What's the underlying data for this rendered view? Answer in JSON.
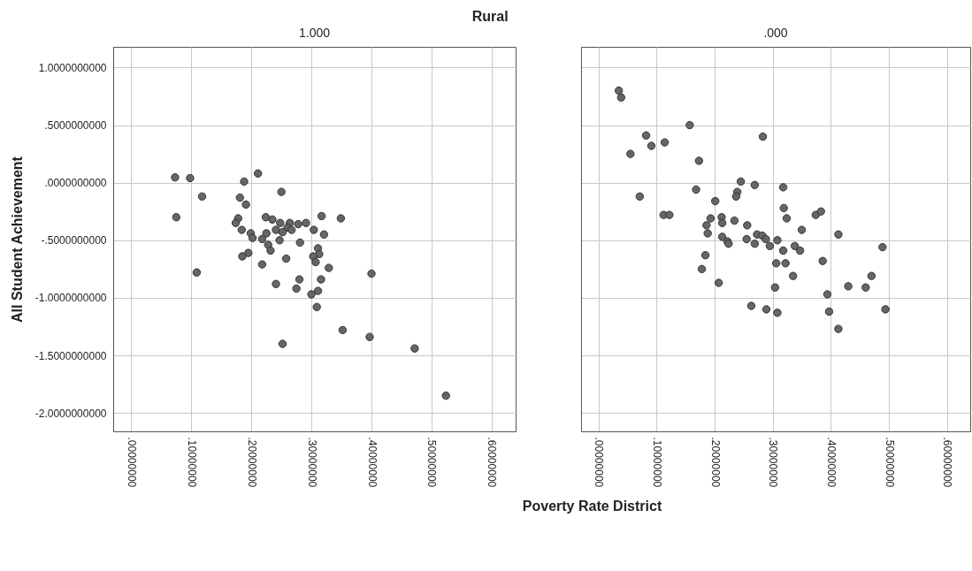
{
  "chart_data": [
    {
      "type": "scatter",
      "title": "1.000",
      "annotations": [
        "Rural"
      ],
      "ylabel": "All Student Achievement",
      "x": [
        0.073,
        0.098,
        0.118,
        0.075,
        0.109,
        0.188,
        0.211,
        0.25,
        0.181,
        0.191,
        0.178,
        0.174,
        0.184,
        0.199,
        0.202,
        0.224,
        0.235,
        0.248,
        0.264,
        0.26,
        0.241,
        0.252,
        0.267,
        0.278,
        0.291,
        0.304,
        0.225,
        0.218,
        0.247,
        0.228,
        0.232,
        0.281,
        0.195,
        0.185,
        0.218,
        0.258,
        0.241,
        0.28,
        0.275,
        0.252,
        0.317,
        0.349,
        0.321,
        0.311,
        0.313,
        0.303,
        0.307,
        0.329,
        0.316,
        0.3,
        0.311,
        0.309,
        0.4,
        0.352,
        0.397,
        0.472,
        0.524
      ],
      "series": [
        {
          "color": "#666666",
          "values": [
            0.046,
            0.04,
            -0.12,
            -0.3,
            -0.78,
            0.01,
            0.08,
            -0.08,
            -0.13,
            -0.19,
            -0.31,
            -0.35,
            -0.41,
            -0.44,
            -0.48,
            -0.3,
            -0.32,
            -0.35,
            -0.35,
            -0.39,
            -0.41,
            -0.43,
            -0.41,
            -0.36,
            -0.35,
            -0.41,
            -0.44,
            -0.49,
            -0.5,
            -0.54,
            -0.59,
            -0.52,
            -0.61,
            -0.64,
            -0.71,
            -0.66,
            -0.88,
            -0.84,
            -0.92,
            -1.4,
            -0.29,
            -0.31,
            -0.45,
            -0.57,
            -0.62,
            -0.64,
            -0.69,
            -0.74,
            -0.84,
            -0.97,
            -0.94,
            -1.08,
            -0.79,
            -1.28,
            -1.34,
            -1.44,
            -1.85
          ]
        }
      ],
      "marker": "circle",
      "grid": true,
      "xlim": [
        -0.03,
        0.64
      ],
      "xticks": [
        {
          "value": 0,
          "label": ".00000000"
        },
        {
          "value": 0.1,
          "label": ".10000000"
        },
        {
          "value": 0.2,
          "label": ".20000000"
        },
        {
          "value": 0.3,
          "label": ".30000000"
        },
        {
          "value": 0.4,
          "label": ".40000000"
        },
        {
          "value": 0.5,
          "label": ".50000000"
        },
        {
          "value": 0.6,
          "label": ".60000000"
        }
      ],
      "ylim": [
        -2.16,
        1.18
      ],
      "yticks": [
        {
          "value": 1,
          "label": "1.0000000000"
        },
        {
          "value": 0.5,
          "label": ".5000000000"
        },
        {
          "value": 0,
          "label": ".0000000000"
        },
        {
          "value": -0.5,
          "label": "-.5000000000"
        },
        {
          "value": -1,
          "label": "-1.0000000000"
        },
        {
          "value": -1.5,
          "label": "-1.5000000000"
        },
        {
          "value": -2,
          "label": "-2.0000000000"
        }
      ]
    },
    {
      "type": "scatter",
      "title": ".000",
      "xlabel": "Poverty Rate District",
      "x": [
        0.035,
        0.039,
        0.082,
        0.091,
        0.055,
        0.114,
        0.157,
        0.173,
        0.283,
        0.071,
        0.168,
        0.112,
        0.122,
        0.201,
        0.245,
        0.239,
        0.237,
        0.269,
        0.193,
        0.186,
        0.188,
        0.212,
        0.213,
        0.234,
        0.256,
        0.213,
        0.222,
        0.224,
        0.255,
        0.269,
        0.273,
        0.282,
        0.288,
        0.295,
        0.184,
        0.178,
        0.318,
        0.319,
        0.324,
        0.374,
        0.383,
        0.35,
        0.413,
        0.489,
        0.308,
        0.318,
        0.338,
        0.347,
        0.306,
        0.322,
        0.335,
        0.386,
        0.207,
        0.304,
        0.394,
        0.43,
        0.46,
        0.47,
        0.263,
        0.289,
        0.308,
        0.397,
        0.494,
        0.413
      ],
      "series": [
        {
          "color": "#666666",
          "values": [
            0.8,
            0.74,
            0.41,
            0.32,
            0.25,
            0.35,
            0.5,
            0.19,
            0.4,
            -0.12,
            -0.06,
            -0.28,
            -0.28,
            -0.16,
            0.01,
            -0.08,
            -0.12,
            -0.02,
            -0.31,
            -0.37,
            -0.44,
            -0.3,
            -0.35,
            -0.33,
            -0.37,
            -0.47,
            -0.51,
            -0.53,
            -0.49,
            -0.53,
            -0.45,
            -0.46,
            -0.49,
            -0.55,
            -0.63,
            -0.75,
            -0.04,
            -0.22,
            -0.31,
            -0.28,
            -0.25,
            -0.41,
            -0.45,
            -0.56,
            -0.5,
            -0.59,
            -0.55,
            -0.59,
            -0.7,
            -0.7,
            -0.81,
            -0.68,
            -0.87,
            -0.91,
            -0.97,
            -0.9,
            -0.91,
            -0.81,
            -1.07,
            -1.1,
            -1.13,
            -1.12,
            -1.1,
            -1.27
          ]
        }
      ],
      "marker": "circle",
      "grid": true,
      "tick_labels": "x",
      "xlim": [
        -0.03,
        0.64
      ],
      "xticks": [
        {
          "value": 0,
          "label": ".00000000"
        },
        {
          "value": 0.1,
          "label": ".10000000"
        },
        {
          "value": 0.2,
          "label": ".20000000"
        },
        {
          "value": 0.3,
          "label": ".30000000"
        },
        {
          "value": 0.4,
          "label": ".40000000"
        },
        {
          "value": 0.5,
          "label": ".50000000"
        },
        {
          "value": 0.6,
          "label": ".60000000"
        }
      ],
      "ylim": [
        -2.16,
        1.18
      ],
      "yticks": [
        {
          "value": 1,
          "label": null
        },
        {
          "value": 0.5,
          "label": null
        },
        {
          "value": 0,
          "label": null
        },
        {
          "value": -0.5,
          "label": null
        },
        {
          "value": -1,
          "label": null
        },
        {
          "value": -1.5,
          "label": null
        },
        {
          "value": -2,
          "label": null
        }
      ]
    }
  ]
}
